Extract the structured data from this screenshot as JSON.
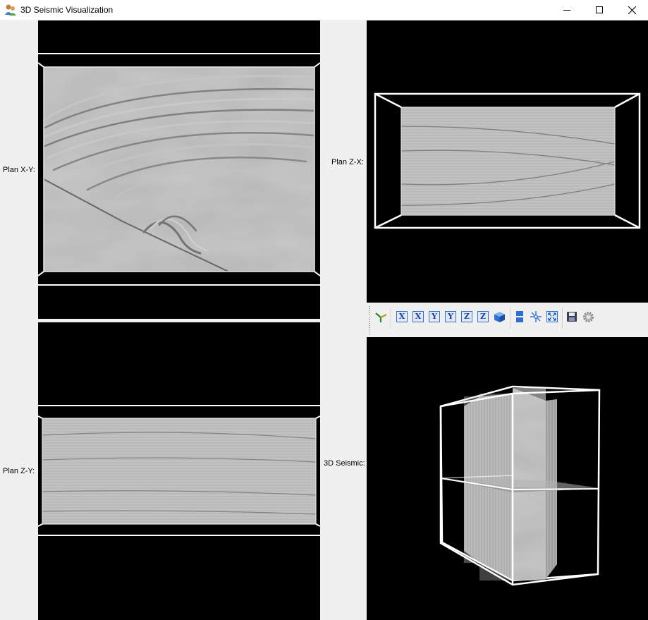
{
  "window": {
    "title": "3D Seismic Visualization",
    "minimize_icon": "minimize-icon",
    "maximize_icon": "maximize-icon",
    "close_icon": "close-icon"
  },
  "panels": {
    "xy": {
      "label": "Plan X-Y:"
    },
    "zx": {
      "label": "Plan Z-X:"
    },
    "zy": {
      "label": "Plan Z-Y:"
    },
    "seismic3d": {
      "label": "3D Seismic:"
    }
  },
  "toolbar": {
    "buttons": [
      {
        "id": "axes",
        "icon": "axes-triad-icon"
      },
      {
        "id": "x1",
        "icon": "x-axis-icon",
        "text": "X"
      },
      {
        "id": "x2",
        "icon": "x-axis-icon",
        "text": "X"
      },
      {
        "id": "y1",
        "icon": "y-axis-icon",
        "text": "Y"
      },
      {
        "id": "y2",
        "icon": "y-axis-icon",
        "text": "Y"
      },
      {
        "id": "z1",
        "icon": "z-axis-icon",
        "text": "Z"
      },
      {
        "id": "z2",
        "icon": "z-axis-icon",
        "text": "Z"
      },
      {
        "id": "cube",
        "icon": "cube-icon"
      },
      {
        "id": "layout",
        "icon": "layout-icon"
      },
      {
        "id": "pick",
        "icon": "pick-icon"
      },
      {
        "id": "fit",
        "icon": "fit-view-icon"
      },
      {
        "id": "save",
        "icon": "save-icon"
      },
      {
        "id": "settings",
        "icon": "gear-icon"
      }
    ]
  },
  "colors": {
    "view_background": "#000000",
    "frame": "#ffffff",
    "seismic_gray": "#a8a8a8",
    "accent_blue": "#2f6fd0"
  }
}
